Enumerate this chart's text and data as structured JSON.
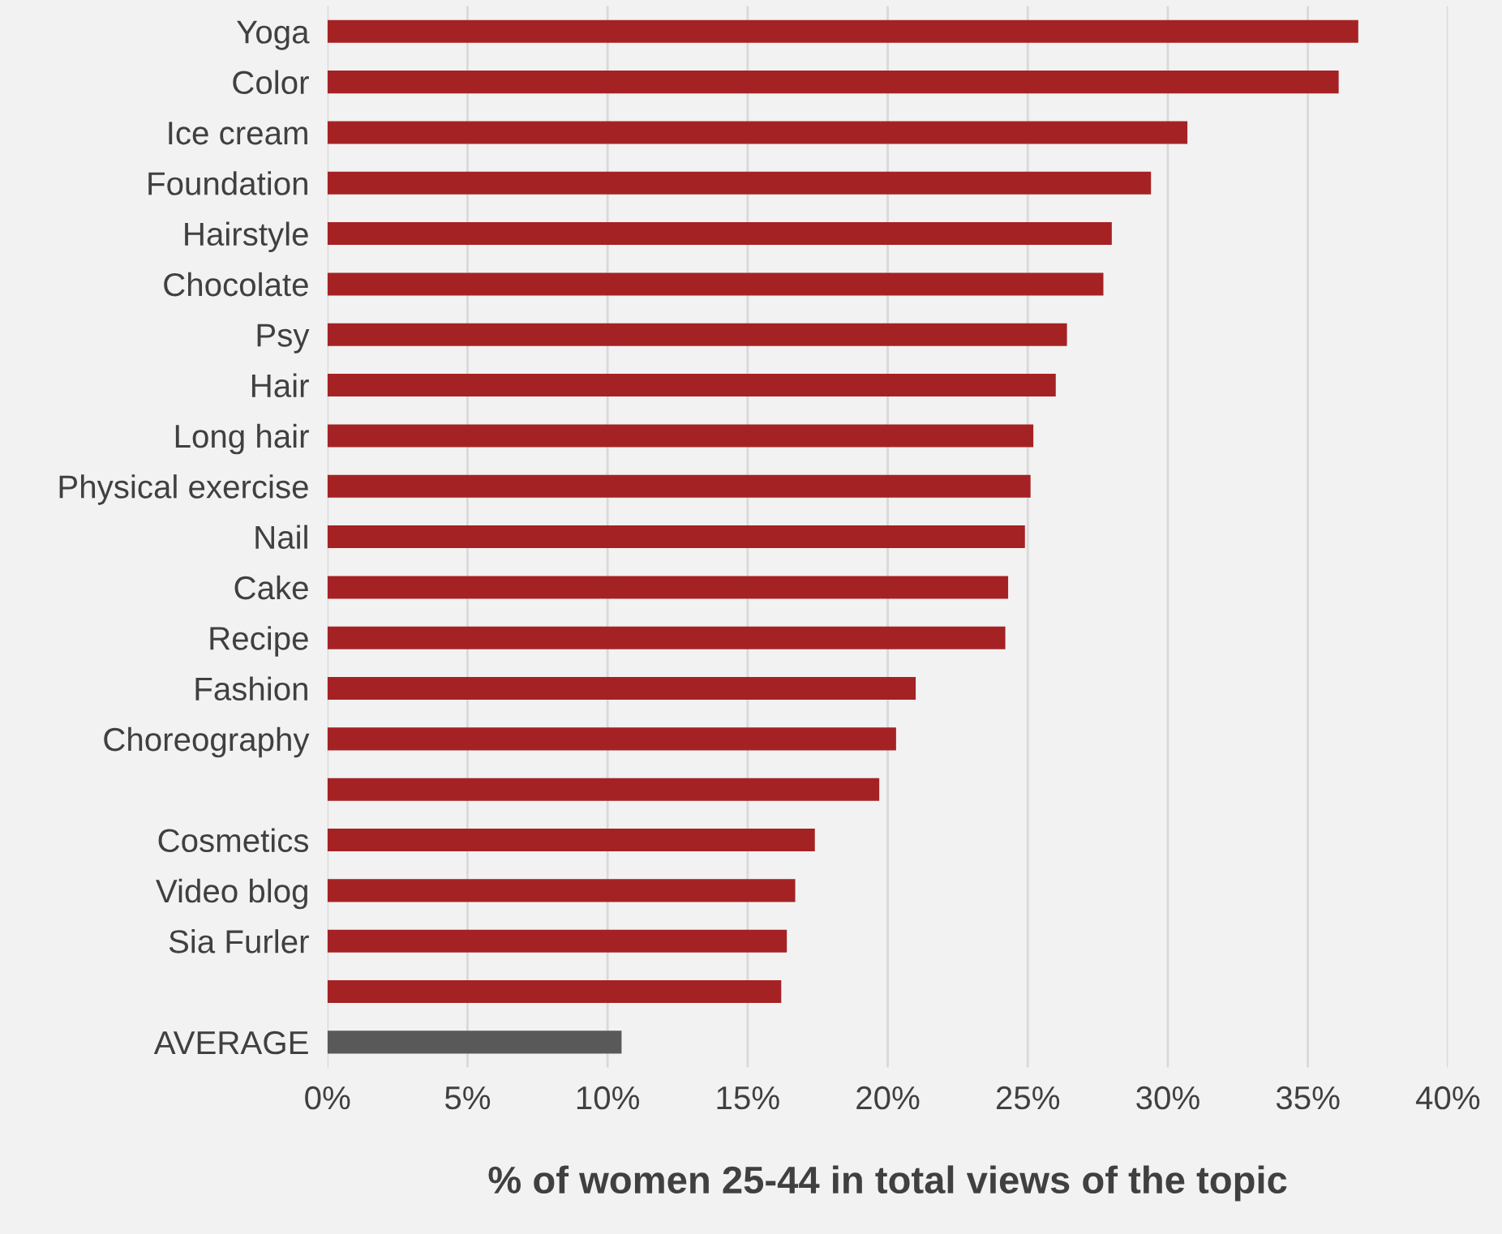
{
  "chart_data": {
    "type": "bar",
    "orientation": "horizontal",
    "xlabel": "% of women 25-44 in total views of the topic",
    "categories": [
      "Yoga",
      "Color",
      "Ice cream",
      "Foundation",
      "Hairstyle",
      "Chocolate",
      "Psy",
      "Hair",
      "Long hair",
      "Physical exercise",
      "Nail",
      "Cake",
      "Recipe",
      "Fashion",
      "Choreography",
      null,
      "Cosmetics",
      "Video blog",
      "Sia Furler",
      null,
      "AVERAGE"
    ],
    "values": [
      36.8,
      36.1,
      30.7,
      29.4,
      28.0,
      27.7,
      26.4,
      26.0,
      25.2,
      25.1,
      24.9,
      24.3,
      24.2,
      21.0,
      20.3,
      19.7,
      17.4,
      16.7,
      16.4,
      16.2,
      10.5
    ],
    "colors": [
      "#a52224",
      "#a52224",
      "#a52224",
      "#a52224",
      "#a52224",
      "#a52224",
      "#a52224",
      "#a52224",
      "#a52224",
      "#a52224",
      "#a52224",
      "#a52224",
      "#a52224",
      "#a52224",
      "#a52224",
      "#a52224",
      "#a52224",
      "#a52224",
      "#a52224",
      "#a52224",
      "#595959"
    ],
    "xlim": [
      0,
      40
    ],
    "xticks": [
      {
        "value": 0,
        "label": "0%"
      },
      {
        "value": 5,
        "label": "5%"
      },
      {
        "value": 10,
        "label": "10%"
      },
      {
        "value": 15,
        "label": "15%"
      },
      {
        "value": 20,
        "label": "20%"
      },
      {
        "value": 25,
        "label": "25%"
      },
      {
        "value": 30,
        "label": "30%"
      },
      {
        "value": 35,
        "label": "35%"
      },
      {
        "value": 40,
        "label": "40%"
      }
    ],
    "grid": "x",
    "legend": false
  }
}
